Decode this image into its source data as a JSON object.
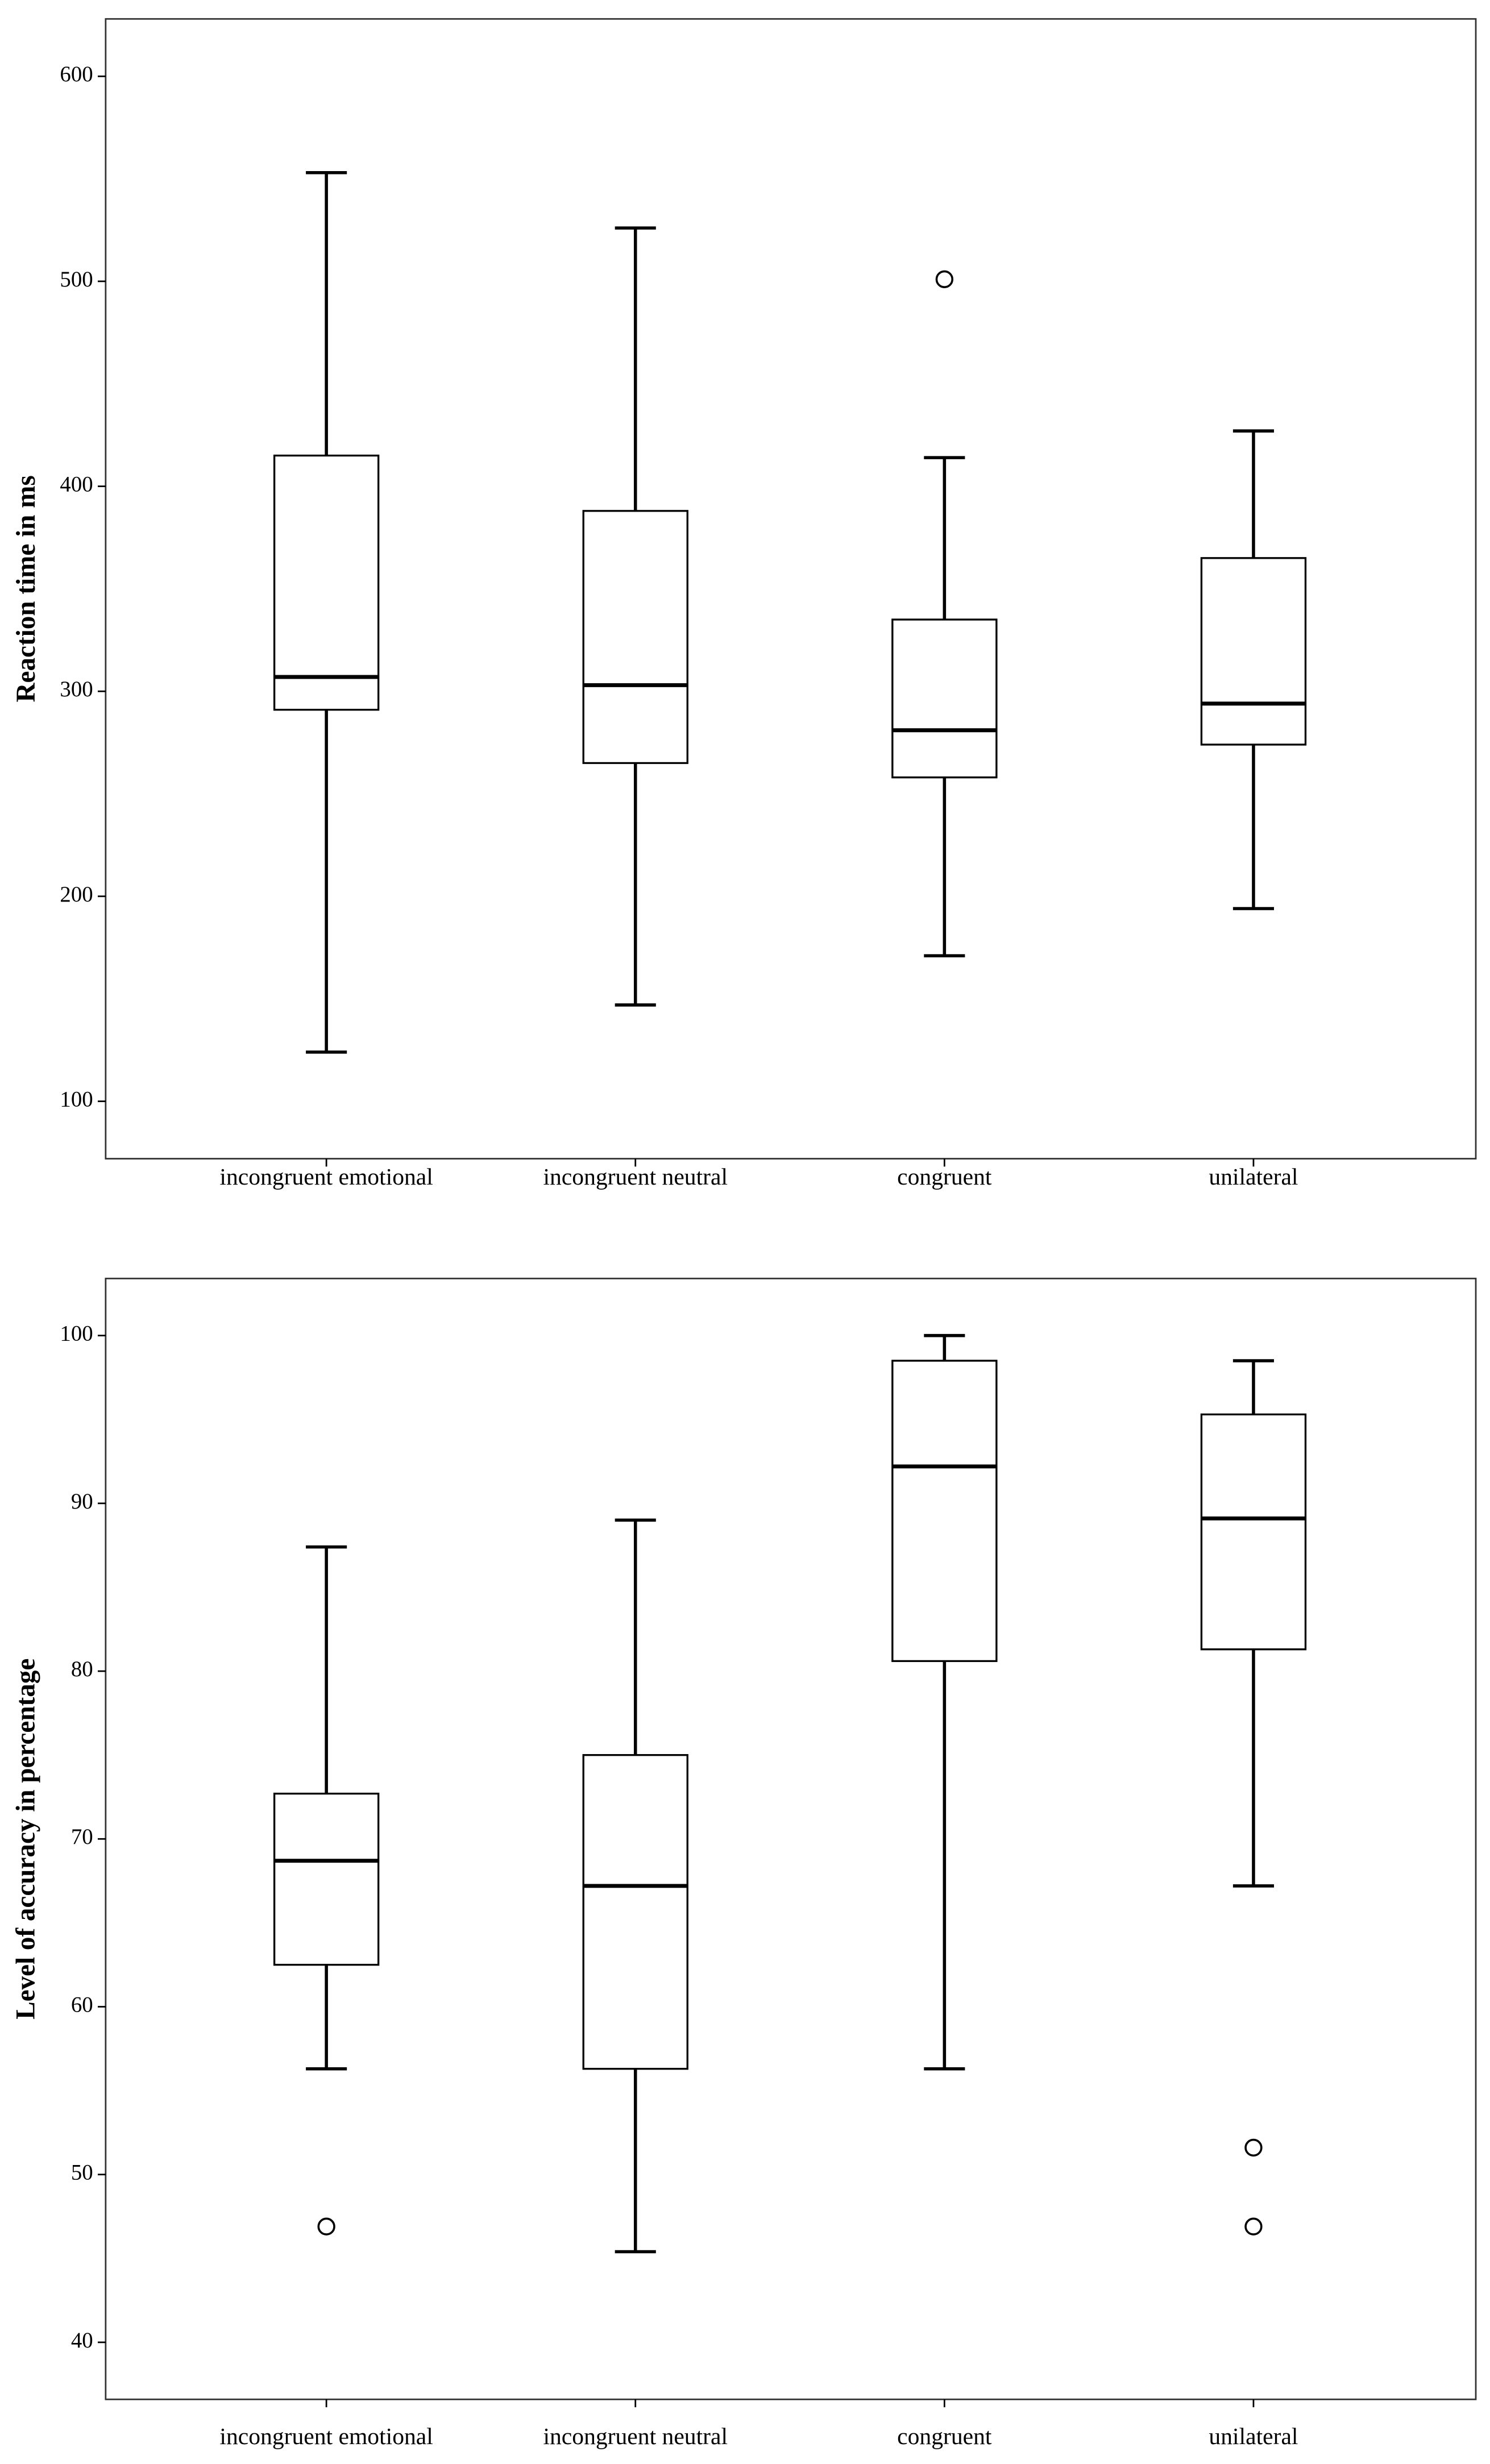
{
  "chart_data": [
    {
      "type": "box",
      "y_label": "Reaction time in ms",
      "categories": [
        "incongruent emotional",
        "incongruent neutral",
        "congruent",
        "unilateral"
      ],
      "boxes": [
        {
          "min": 124,
          "q1": 291,
          "median": 307,
          "q3": 415,
          "max": 553,
          "outliers": []
        },
        {
          "min": 147,
          "q1": 265,
          "median": 303,
          "q3": 388,
          "max": 526,
          "outliers": []
        },
        {
          "min": 171,
          "q1": 258,
          "median": 281,
          "q3": 335,
          "max": 414,
          "outliers": [
            501
          ]
        },
        {
          "min": 194,
          "q1": 274,
          "median": 294,
          "q3": 365,
          "max": 427,
          "outliers": []
        }
      ],
      "ylim": [
        72,
        628
      ],
      "yticks": [
        100,
        200,
        300,
        400,
        500,
        600
      ]
    },
    {
      "type": "box",
      "y_label": "Level of accuracy in percentage",
      "categories": [
        "incongruent emotional",
        "incongruent neutral",
        "congruent",
        "unilateral"
      ],
      "boxes": [
        {
          "min": 56.3,
          "q1": 62.5,
          "median": 68.7,
          "q3": 72.7,
          "max": 87.4,
          "outliers": [
            46.9
          ]
        },
        {
          "min": 45.4,
          "q1": 56.3,
          "median": 67.2,
          "q3": 75,
          "max": 89,
          "outliers": []
        },
        {
          "min": 56.3,
          "q1": 80.6,
          "median": 92.2,
          "q3": 98.5,
          "max": 100,
          "outliers": []
        },
        {
          "min": 67.2,
          "q1": 81.3,
          "median": 89.1,
          "q3": 95.3,
          "max": 98.5,
          "outliers": [
            51.6,
            46.9
          ]
        }
      ],
      "ylim": [
        36.6,
        103.4
      ],
      "yticks": [
        40,
        50,
        60,
        70,
        80,
        90,
        100
      ]
    }
  ]
}
